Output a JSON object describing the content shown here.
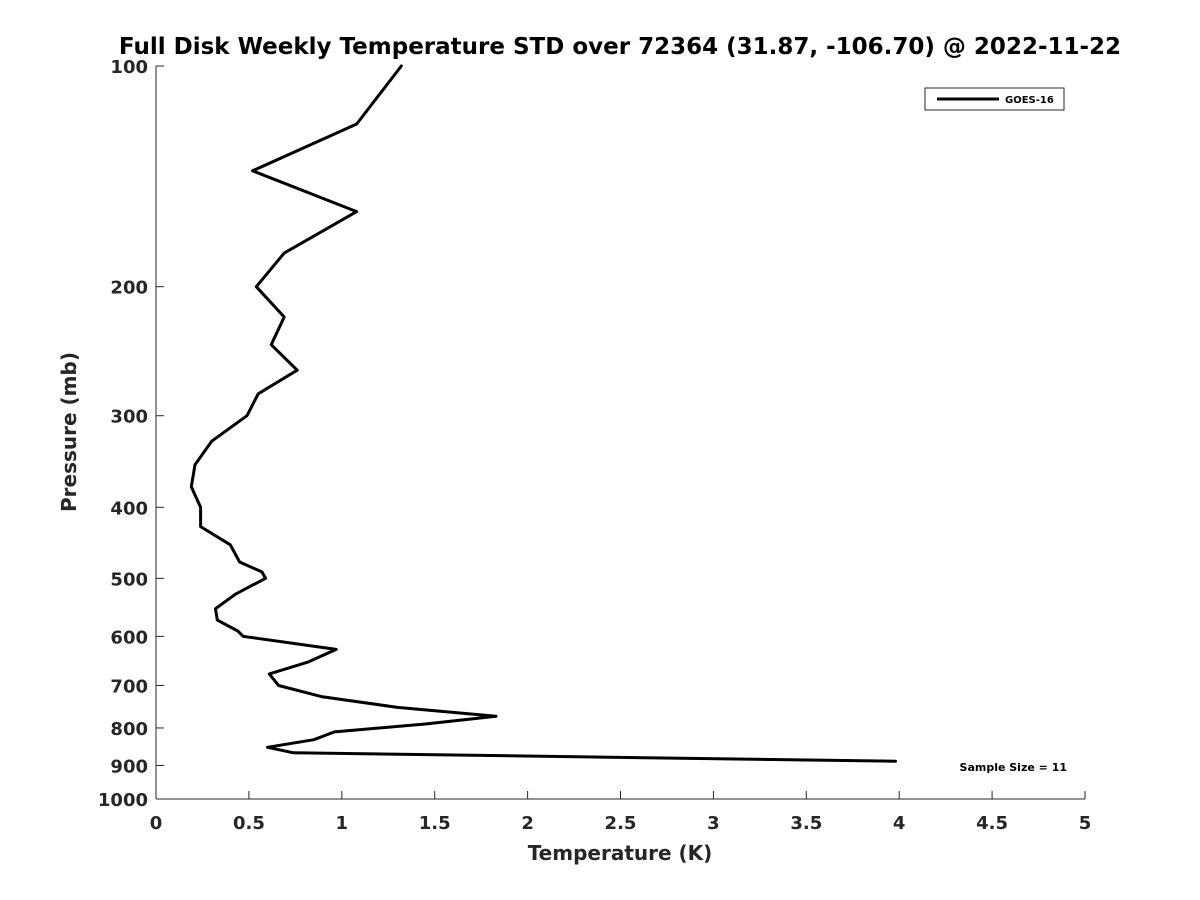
{
  "chart_data": {
    "type": "line",
    "title": "Full Disk Weekly Temperature STD over 72364 (31.87, -106.70) @ 2022-11-22",
    "xlabel": "Temperature (K)",
    "ylabel": "Pressure (mb)",
    "xlim": [
      0,
      5
    ],
    "ylim": [
      1000,
      100
    ],
    "y_scale": "log",
    "x_ticks": [
      "0",
      "0.5",
      "1",
      "1.5",
      "2",
      "2.5",
      "3",
      "3.5",
      "4",
      "4.5",
      "5"
    ],
    "y_ticks": [
      "100",
      "200",
      "300",
      "400",
      "500",
      "600",
      "700",
      "800",
      "900",
      "1000"
    ],
    "grid": false,
    "legend_position": "top-right",
    "annotation": "Sample Size = 11",
    "series": [
      {
        "name": "GOES-16",
        "color": "#000000",
        "points": [
          [
            1.32,
            100
          ],
          [
            1.08,
            120
          ],
          [
            0.52,
            139
          ],
          [
            1.08,
            158
          ],
          [
            0.69,
            180
          ],
          [
            0.54,
            200
          ],
          [
            0.69,
            220
          ],
          [
            0.62,
            240
          ],
          [
            0.76,
            260
          ],
          [
            0.55,
            280
          ],
          [
            0.49,
            300
          ],
          [
            0.3,
            325
          ],
          [
            0.21,
            350
          ],
          [
            0.19,
            375
          ],
          [
            0.24,
            400
          ],
          [
            0.24,
            425
          ],
          [
            0.4,
            450
          ],
          [
            0.45,
            475
          ],
          [
            0.57,
            490
          ],
          [
            0.59,
            500
          ],
          [
            0.43,
            525
          ],
          [
            0.32,
            550
          ],
          [
            0.33,
            570
          ],
          [
            0.44,
            590
          ],
          [
            0.47,
            600
          ],
          [
            0.97,
            625
          ],
          [
            0.82,
            650
          ],
          [
            0.61,
            675
          ],
          [
            0.66,
            700
          ],
          [
            0.89,
            725
          ],
          [
            1.3,
            750
          ],
          [
            1.83,
            771
          ],
          [
            1.45,
            790
          ],
          [
            0.96,
            810
          ],
          [
            0.85,
            830
          ],
          [
            0.6,
            850
          ],
          [
            0.74,
            865
          ],
          [
            3.98,
            888
          ]
        ]
      }
    ]
  }
}
